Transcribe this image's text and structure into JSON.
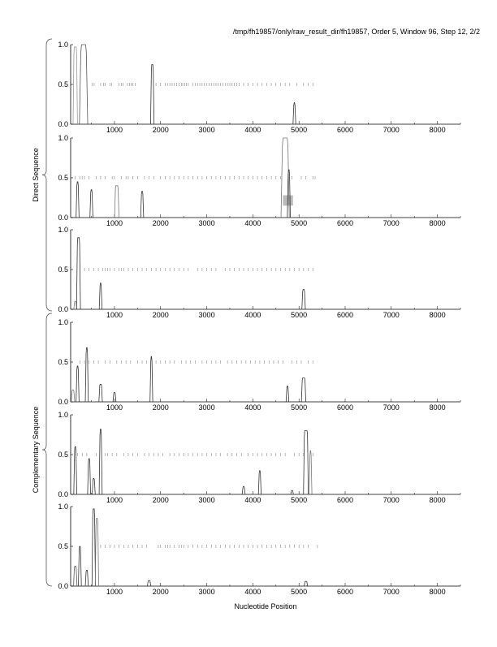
{
  "chart_data": {
    "type": "line",
    "title": "/tmp/fh19857/only/raw_result_dir/fh19857, Order 5, Window 96, Step 12, 2/2",
    "xlabel": "Nucleotide Position",
    "xlim": [
      50,
      8500
    ],
    "ylim": [
      0,
      1
    ],
    "x_ticks": [
      1000,
      2000,
      3000,
      4000,
      5000,
      6000,
      7000,
      8000
    ],
    "x_tick_labels": [
      "1000",
      "2000",
      "3000",
      "4000",
      "5000",
      "6000",
      "7000",
      "8000"
    ],
    "y_ticks": [
      0,
      0.5,
      1
    ],
    "y_tick_labels": [
      "0.0",
      "0.5",
      "1.0"
    ],
    "groups": [
      {
        "label": "Direct Sequence",
        "panels": [
          0,
          1,
          2
        ]
      },
      {
        "label": "Complementary Sequence",
        "panels": [
          3,
          4,
          5
        ]
      }
    ],
    "panels": [
      {
        "peaks": [
          [
            150,
            0.97,
            60,
            "#999"
          ],
          [
            330,
            1.0,
            120,
            "#555"
          ],
          [
            1820,
            0.75,
            40,
            "#333"
          ],
          [
            4900,
            0.27,
            25,
            "#333"
          ]
        ],
        "orf_marks": [
          520,
          560,
          700,
          760,
          800,
          900,
          940,
          1100,
          1150,
          1180,
          1280,
          1330,
          1360,
          1400,
          1450,
          1900,
          2000,
          2100,
          2150,
          2200,
          2250,
          2300,
          2350,
          2400,
          2450,
          2480,
          2520,
          2560,
          2600,
          2700,
          2750,
          2800,
          2850,
          2900,
          2950,
          3000,
          3050,
          3100,
          3150,
          3200,
          3250,
          3300,
          3350,
          3400,
          3450,
          3500,
          3550,
          3600,
          3650,
          3700,
          3800,
          3900,
          4000,
          4100,
          4200,
          4300,
          4400,
          4500,
          4600,
          4700,
          4800,
          4950,
          5100,
          5200,
          5300
        ]
      },
      {
        "peaks": [
          [
            200,
            0.45,
            30,
            "#333"
          ],
          [
            500,
            0.35,
            30,
            "#333"
          ],
          [
            1050,
            0.4,
            60,
            "#777"
          ],
          [
            1600,
            0.33,
            30,
            "#333"
          ],
          [
            4700,
            1.0,
            120,
            "#777"
          ],
          [
            4780,
            0.6,
            30,
            "#333"
          ]
        ],
        "orf_marks": [
          150,
          250,
          300,
          350,
          450,
          600,
          700,
          800,
          950,
          1000,
          1150,
          1250,
          1300,
          1400,
          1500,
          1650,
          1750,
          1850,
          2000,
          2100,
          2200,
          2300,
          2400,
          2500,
          2600,
          2700,
          2800,
          2900,
          3000,
          3100,
          3200,
          3300,
          3400,
          3500,
          3600,
          3700,
          3800,
          3900,
          4000,
          4100,
          4200,
          4300,
          4400,
          4500,
          4600,
          4850,
          5050,
          5150,
          5300,
          5350
        ],
        "highlight": {
          "x": [
            4650,
            4870
          ],
          "y": [
            0.15,
            0.28
          ],
          "color": "#bbbbbb"
        }
      },
      {
        "peaks": [
          [
            150,
            0.1,
            30,
            "#777"
          ],
          [
            220,
            0.9,
            50,
            "#333"
          ],
          [
            700,
            0.33,
            25,
            "#333"
          ],
          [
            5100,
            0.25,
            40,
            "#333"
          ]
        ],
        "orf_marks": [
          350,
          450,
          550,
          650,
          750,
          800,
          850,
          900,
          1000,
          1100,
          1150,
          1200,
          1300,
          1400,
          1500,
          1600,
          1700,
          1800,
          1900,
          2000,
          2100,
          2200,
          2300,
          2400,
          2500,
          2600,
          2800,
          2900,
          3000,
          3100,
          3200,
          3400,
          3500,
          3600,
          3700,
          3800,
          3900,
          4000,
          4100,
          4200,
          4300,
          4400,
          4500,
          4600,
          4700,
          4800,
          4900,
          5000,
          5100,
          5200,
          5300
        ]
      },
      {
        "peaks": [
          [
            100,
            0.15,
            40,
            "#777"
          ],
          [
            200,
            0.45,
            30,
            "#333"
          ],
          [
            400,
            0.68,
            30,
            "#333"
          ],
          [
            700,
            0.22,
            40,
            "#333"
          ],
          [
            1000,
            0.12,
            30,
            "#333"
          ],
          [
            1800,
            0.57,
            25,
            "#333"
          ],
          [
            4750,
            0.2,
            25,
            "#333"
          ],
          [
            5100,
            0.3,
            60,
            "#333"
          ]
        ],
        "orf_marks": [
          250,
          350,
          450,
          550,
          650,
          800,
          900,
          1050,
          1150,
          1250,
          1350,
          1500,
          1600,
          1700,
          1900,
          2000,
          2100,
          2200,
          2300,
          2450,
          2550,
          2650,
          2750,
          2900,
          3000,
          3100,
          3200,
          3300,
          3450,
          3550,
          3650,
          3750,
          3850,
          3950,
          4050,
          4150,
          4250,
          4350,
          4450,
          4550,
          4650,
          4850,
          4950,
          5050,
          5200,
          5300
        ]
      },
      {
        "peaks": [
          [
            150,
            0.6,
            30,
            "#333"
          ],
          [
            450,
            0.45,
            30,
            "#333"
          ],
          [
            550,
            0.2,
            30,
            "#333"
          ],
          [
            700,
            0.82,
            30,
            "#333"
          ],
          [
            3800,
            0.1,
            30,
            "#333"
          ],
          [
            4150,
            0.3,
            25,
            "#333"
          ],
          [
            4850,
            0.05,
            25,
            "#333"
          ],
          [
            5150,
            0.8,
            70,
            "#333"
          ],
          [
            5250,
            0.55,
            25,
            "#777"
          ]
        ],
        "orf_marks": [
          200,
          300,
          400,
          600,
          800,
          850,
          950,
          1050,
          1200,
          1300,
          1400,
          1500,
          1650,
          1750,
          1850,
          1950,
          2050,
          2200,
          2300,
          2400,
          2500,
          2600,
          2700,
          2800,
          2900,
          3000,
          3100,
          3200,
          3300,
          3450,
          3550,
          3650,
          3750,
          3900,
          4000,
          4100,
          4200,
          4300,
          4400,
          4500,
          4600,
          4700,
          4900,
          5000,
          5100,
          5300
        ]
      },
      {
        "peaks": [
          [
            150,
            0.25,
            40,
            "#555"
          ],
          [
            250,
            0.5,
            30,
            "#333"
          ],
          [
            400,
            0.2,
            30,
            "#333"
          ],
          [
            550,
            0.97,
            40,
            "#333"
          ],
          [
            620,
            0.85,
            40,
            "#777"
          ],
          [
            1750,
            0.07,
            40,
            "#333"
          ],
          [
            5150,
            0.06,
            40,
            "#333"
          ]
        ],
        "orf_marks": [
          700,
          800,
          900,
          1000,
          1100,
          1200,
          1300,
          1400,
          1500,
          1600,
          1700,
          1950,
          2000,
          2100,
          2150,
          2200,
          2300,
          2400,
          2450,
          2500,
          2600,
          2700,
          2800,
          2900,
          3000,
          3100,
          3200,
          3300,
          3400,
          3500,
          3600,
          3700,
          3800,
          3900,
          4000,
          4100,
          4200,
          4300,
          4400,
          4500,
          4600,
          4700,
          4800,
          4900,
          5000,
          5100,
          5200,
          5400
        ]
      }
    ]
  }
}
